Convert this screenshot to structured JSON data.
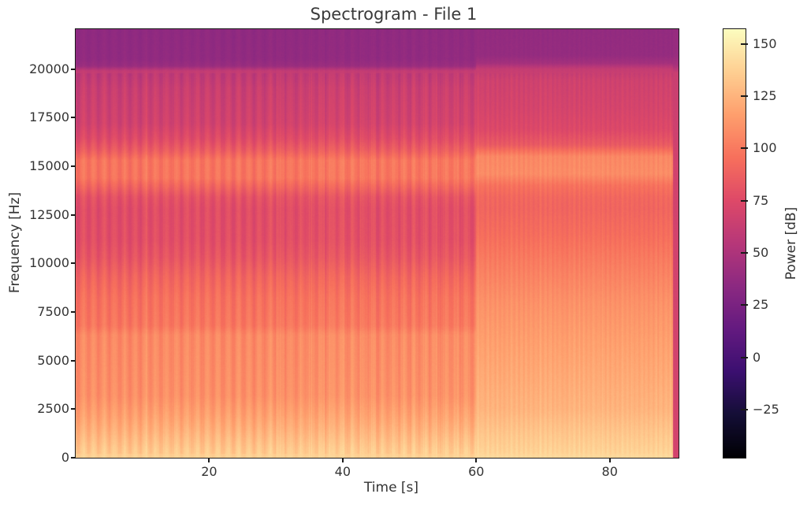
{
  "chart_data": {
    "type": "heatmap",
    "title": "Spectrogram - File 1",
    "xlabel": "Time [s]",
    "ylabel": "Frequency [Hz]",
    "colorbar_label": "Power [dB]",
    "x_range_s": [
      0,
      90.3
    ],
    "y_range_hz": [
      0,
      22050
    ],
    "x_ticks": [
      20,
      40,
      60,
      80
    ],
    "x_tick_labels": [
      "20",
      "40",
      "60",
      "80"
    ],
    "y_ticks": [
      0,
      2500,
      5000,
      7500,
      10000,
      12500,
      15000,
      17500,
      20000
    ],
    "y_tick_labels": [
      "0",
      "2500",
      "5000",
      "7500",
      "10000",
      "12500",
      "15000",
      "17500",
      "20000"
    ],
    "colorbar_ticks": [
      150,
      125,
      100,
      75,
      50,
      25,
      0,
      -25
    ],
    "colorbar_tick_labels": [
      "150",
      "125",
      "100",
      "75",
      "50",
      "25",
      "0",
      "−25"
    ],
    "power_db_range": [
      -48,
      157
    ],
    "colormap": "magma",
    "colormap_stops": [
      [
        0.0,
        "#000004"
      ],
      [
        0.1,
        "#140e36"
      ],
      [
        0.2,
        "#3b0f70"
      ],
      [
        0.3,
        "#641a80"
      ],
      [
        0.4,
        "#8c2981"
      ],
      [
        0.5,
        "#b73779"
      ],
      [
        0.6,
        "#de4968"
      ],
      [
        0.7,
        "#f7705c"
      ],
      [
        0.8,
        "#fe9f6d"
      ],
      [
        0.9,
        "#fecf92"
      ],
      [
        1.0,
        "#fcfdbf"
      ]
    ],
    "pixel_noise_db": 1.2,
    "segments": [
      {
        "name": "beating-tone-section",
        "t_start": 0,
        "t_end": 60,
        "stripe_period_s": 1.55,
        "stripe_depth_db": 10,
        "column_noise_db": 1.6,
        "late_after_s": 29,
        "late_stripe_depth_db": 8,
        "late_column_noise_db": 3.6,
        "profile_hz_db": [
          [
            0,
            140
          ],
          [
            400,
            138
          ],
          [
            900,
            133
          ],
          [
            1500,
            127
          ],
          [
            2200,
            121
          ],
          [
            3200,
            114
          ],
          [
            5000,
            112
          ],
          [
            6300,
            111
          ],
          [
            6800,
            103
          ],
          [
            8200,
            100
          ],
          [
            9300,
            94
          ],
          [
            10300,
            86
          ],
          [
            11200,
            82
          ],
          [
            12800,
            81
          ],
          [
            13400,
            84
          ],
          [
            13900,
            93
          ],
          [
            14400,
            102
          ],
          [
            15300,
            102
          ],
          [
            15800,
            90
          ],
          [
            16400,
            80
          ],
          [
            17200,
            72
          ],
          [
            19000,
            68
          ],
          [
            19900,
            62
          ],
          [
            20150,
            42
          ],
          [
            20500,
            38
          ],
          [
            22050,
            37
          ]
        ]
      },
      {
        "name": "steady-tone-section",
        "t_start": 60,
        "t_end": 89.5,
        "stripe_period_s": 0.72,
        "stripe_depth_db": 4.5,
        "column_noise_db": 1.4,
        "profile_hz_db": [
          [
            0,
            142
          ],
          [
            500,
            139
          ],
          [
            1200,
            135
          ],
          [
            2500,
            127
          ],
          [
            4000,
            123
          ],
          [
            6000,
            118
          ],
          [
            8000,
            112
          ],
          [
            9800,
            104
          ],
          [
            11500,
            96
          ],
          [
            12800,
            92
          ],
          [
            13400,
            93
          ],
          [
            14000,
            98
          ],
          [
            14600,
            110
          ],
          [
            15500,
            108
          ],
          [
            16100,
            86
          ],
          [
            16900,
            76
          ],
          [
            18000,
            72
          ],
          [
            19400,
            69
          ],
          [
            20000,
            62
          ],
          [
            20300,
            46
          ],
          [
            20700,
            39
          ],
          [
            22050,
            38
          ]
        ]
      },
      {
        "name": "end-marker-stripe",
        "t_start": 89.5,
        "t_end": 90.3,
        "stripe_period_s": 0,
        "stripe_depth_db": 0,
        "column_noise_db": 0,
        "profile_hz_db": [
          [
            0,
            69
          ],
          [
            15000,
            68
          ],
          [
            19800,
            64
          ],
          [
            20200,
            47
          ],
          [
            20700,
            40
          ],
          [
            22050,
            39
          ]
        ]
      }
    ]
  },
  "figure": {
    "background": "#ffffff",
    "text_color": "#333333",
    "spine_color": "#1a1a1a"
  }
}
